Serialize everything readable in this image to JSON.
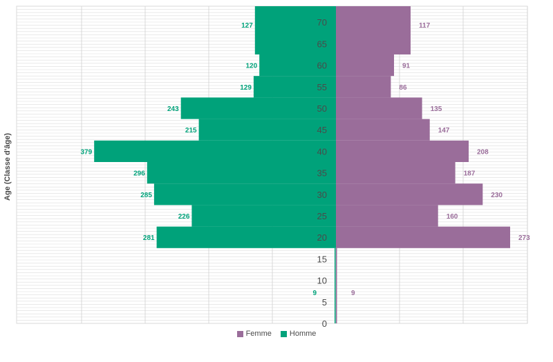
{
  "chart_data": {
    "type": "bar",
    "orientation": "horizontal-population-pyramid",
    "ylabel": "Age   (Classe d'âge)",
    "y_ticks": [
      "0",
      "5",
      "10",
      "15",
      "20",
      "25",
      "30",
      "35",
      "40",
      "45",
      "50",
      "55",
      "60",
      "65",
      "70"
    ],
    "ylim": [
      0,
      75
    ],
    "legend_position": "bottom",
    "grid": true,
    "series": [
      {
        "name": "Homme",
        "color": "#00a27a",
        "side": "left",
        "bands": [
          {
            "from": 0,
            "to": 17.5,
            "value": 9,
            "label": "9"
          },
          {
            "from": 17.5,
            "to": 22.5,
            "value": 281,
            "label": "281"
          },
          {
            "from": 22.5,
            "to": 27.5,
            "value": 226,
            "label": "226"
          },
          {
            "from": 27.5,
            "to": 32.5,
            "value": 285,
            "label": "285"
          },
          {
            "from": 32.5,
            "to": 37.5,
            "value": 296,
            "label": "296"
          },
          {
            "from": 37.5,
            "to": 42.5,
            "value": 379,
            "label": "379"
          },
          {
            "from": 42.5,
            "to": 47.5,
            "value": 215,
            "label": "215"
          },
          {
            "from": 47.5,
            "to": 52.5,
            "value": 243,
            "label": "243"
          },
          {
            "from": 52.5,
            "to": 57.5,
            "value": 129,
            "label": "129"
          },
          {
            "from": 57.5,
            "to": 62.5,
            "value": 120,
            "label": "120"
          },
          {
            "from": 62.5,
            "to": 75,
            "value": 127,
            "label": "127"
          }
        ]
      },
      {
        "name": "Femme",
        "color": "#9a6d9a",
        "side": "right",
        "bands": [
          {
            "from": 0,
            "to": 17.5,
            "value": 9,
            "label": "9"
          },
          {
            "from": 17.5,
            "to": 22.5,
            "value": 273,
            "label": "273"
          },
          {
            "from": 22.5,
            "to": 27.5,
            "value": 160,
            "label": "160"
          },
          {
            "from": 27.5,
            "to": 32.5,
            "value": 230,
            "label": "230"
          },
          {
            "from": 32.5,
            "to": 37.5,
            "value": 187,
            "label": "187"
          },
          {
            "from": 37.5,
            "to": 42.5,
            "value": 208,
            "label": "208"
          },
          {
            "from": 42.5,
            "to": 47.5,
            "value": 147,
            "label": "147"
          },
          {
            "from": 47.5,
            "to": 52.5,
            "value": 135,
            "label": "135"
          },
          {
            "from": 52.5,
            "to": 57.5,
            "value": 86,
            "label": "86"
          },
          {
            "from": 57.5,
            "to": 62.5,
            "value": 91,
            "label": "91"
          },
          {
            "from": 62.5,
            "to": 75,
            "value": 117,
            "label": "117"
          }
        ]
      }
    ],
    "legend": [
      {
        "name": "Femme",
        "color": "#9a6d9a"
      },
      {
        "name": "Homme",
        "color": "#00a27a"
      }
    ]
  }
}
